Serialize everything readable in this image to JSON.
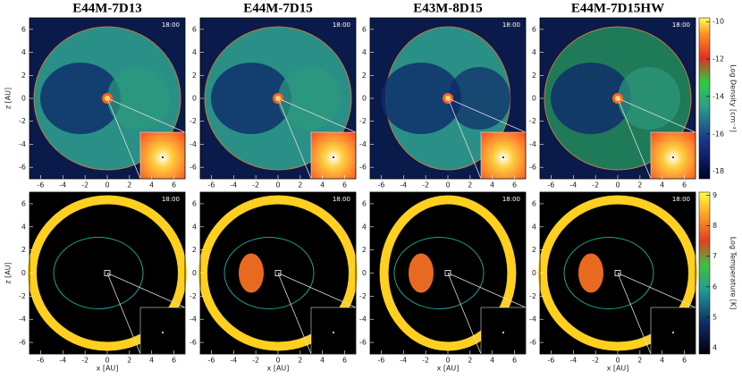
{
  "figure": {
    "panels": [
      {
        "title": "E44M-7D13"
      },
      {
        "title": "E44M-7D15"
      },
      {
        "title": "E43M-8D15"
      },
      {
        "title": "E44M-7D15HW"
      }
    ],
    "time": "18:00",
    "x_label": "x [AU]",
    "z_label": "z [AU]",
    "axis_lim": [
      -7,
      7
    ],
    "x_ticks": [
      -6,
      -4,
      -2,
      0,
      2,
      4,
      6
    ],
    "z_ticks": [
      6,
      4,
      2,
      0,
      -2,
      -4,
      -6
    ],
    "density_bar": {
      "label": "Log Density [cm⁻³]",
      "lim": [
        -18.4,
        -9.8
      ],
      "ticks": [
        -10,
        -12,
        -14,
        -16,
        -18
      ]
    },
    "temperature_bar": {
      "label": "Log Temperature [K]",
      "lim": [
        3.8,
        9.1
      ],
      "ticks": [
        9,
        8,
        7,
        6,
        5,
        4
      ]
    }
  }
}
